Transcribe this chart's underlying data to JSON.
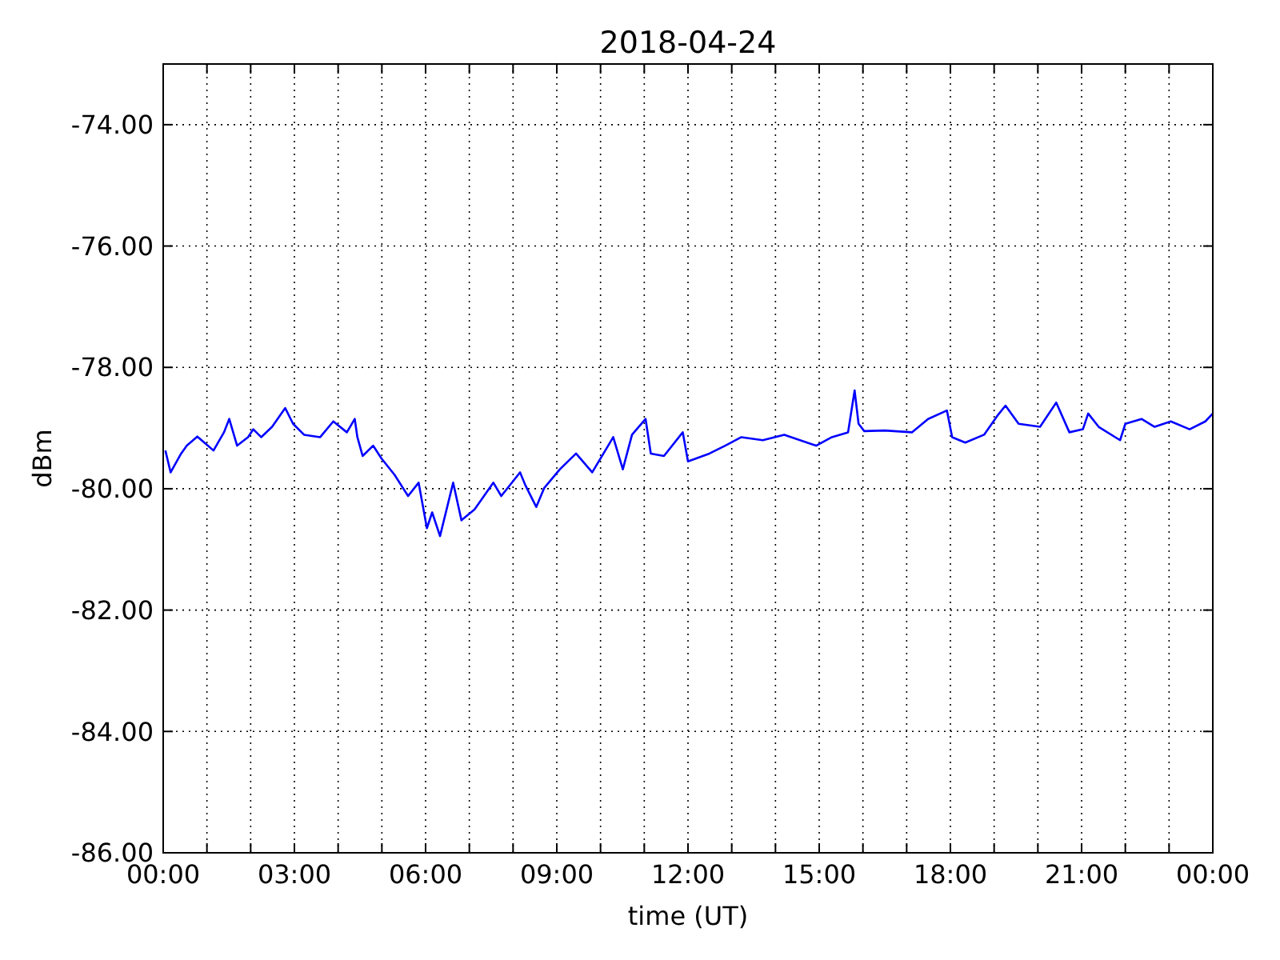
{
  "chart_data": {
    "type": "line",
    "title": "2018-04-24",
    "xlabel": "time (UT)",
    "ylabel": "dBm",
    "xlim": [
      0,
      24
    ],
    "ylim": [
      -86,
      -73
    ],
    "xticks": [
      {
        "value": 0,
        "label": "00:00"
      },
      {
        "value": 1,
        "label": null
      },
      {
        "value": 2,
        "label": null
      },
      {
        "value": 3,
        "label": "03:00"
      },
      {
        "value": 4,
        "label": null
      },
      {
        "value": 5,
        "label": null
      },
      {
        "value": 6,
        "label": "06:00"
      },
      {
        "value": 7,
        "label": null
      },
      {
        "value": 8,
        "label": null
      },
      {
        "value": 9,
        "label": "09:00"
      },
      {
        "value": 10,
        "label": null
      },
      {
        "value": 11,
        "label": null
      },
      {
        "value": 12,
        "label": "12:00"
      },
      {
        "value": 13,
        "label": null
      },
      {
        "value": 14,
        "label": null
      },
      {
        "value": 15,
        "label": "15:00"
      },
      {
        "value": 16,
        "label": null
      },
      {
        "value": 17,
        "label": null
      },
      {
        "value": 18,
        "label": "18:00"
      },
      {
        "value": 19,
        "label": null
      },
      {
        "value": 20,
        "label": null
      },
      {
        "value": 21,
        "label": "21:00"
      },
      {
        "value": 22,
        "label": null
      },
      {
        "value": 23,
        "label": null
      },
      {
        "value": 24,
        "label": "00:00"
      }
    ],
    "yticks": [
      {
        "value": -86,
        "label": "-86.00"
      },
      {
        "value": -84,
        "label": "-84.00"
      },
      {
        "value": -82,
        "label": "-82.00"
      },
      {
        "value": -80,
        "label": "-80.00"
      },
      {
        "value": -78,
        "label": "-78.00"
      },
      {
        "value": -76,
        "label": "-76.00"
      },
      {
        "value": -74,
        "label": "-74.00"
      }
    ],
    "grid": true,
    "line_style": "solid",
    "series": [
      {
        "color": "#0000ff",
        "x": [
          0.05,
          0.17,
          0.41,
          0.54,
          0.78,
          1.15,
          1.39,
          1.51,
          1.69,
          1.94,
          2.06,
          2.24,
          2.49,
          2.79,
          2.97,
          3.22,
          3.59,
          3.89,
          4.2,
          4.38,
          4.44,
          4.56,
          4.8,
          4.99,
          5.29,
          5.6,
          5.84,
          6.03,
          6.15,
          6.33,
          6.63,
          6.82,
          7.12,
          7.55,
          7.73,
          8.16,
          8.28,
          8.53,
          8.71,
          9.07,
          9.44,
          9.81,
          10.29,
          10.51,
          10.72,
          11.03,
          11.15,
          11.45,
          11.88,
          12,
          12.49,
          12.85,
          13.22,
          13.71,
          14.2,
          14.93,
          15.29,
          15.66,
          15.81,
          15.9,
          16.03,
          16.5,
          17.12,
          17.49,
          17.92,
          18.04,
          18.34,
          18.77,
          19.07,
          19.26,
          19.56,
          20.05,
          20.42,
          20.72,
          21.03,
          21.15,
          21.39,
          21.88,
          22,
          22.37,
          22.67,
          23.04,
          23.47,
          23.83,
          24
        ],
        "values": [
          -79.37,
          -79.73,
          -79.42,
          -79.29,
          -79.14,
          -79.37,
          -79.07,
          -78.85,
          -79.29,
          -79.15,
          -79.02,
          -79.15,
          -78.98,
          -78.67,
          -78.93,
          -79.11,
          -79.15,
          -78.89,
          -79.07,
          -78.85,
          -79.15,
          -79.46,
          -79.29,
          -79.5,
          -79.77,
          -80.12,
          -79.9,
          -80.65,
          -80.39,
          -80.78,
          -79.9,
          -80.52,
          -80.34,
          -79.9,
          -80.12,
          -79.73,
          -79.94,
          -80.3,
          -79.99,
          -79.68,
          -79.42,
          -79.73,
          -79.15,
          -79.68,
          -79.11,
          -78.85,
          -79.42,
          -79.46,
          -79.07,
          -79.55,
          -79.42,
          -79.29,
          -79.15,
          -79.2,
          -79.11,
          -79.29,
          -79.15,
          -79.07,
          -78.38,
          -78.93,
          -79.05,
          -79.04,
          -79.07,
          -78.85,
          -78.71,
          -79.15,
          -79.24,
          -79.11,
          -78.8,
          -78.63,
          -78.93,
          -78.98,
          -78.58,
          -79.07,
          -79.02,
          -78.76,
          -78.98,
          -79.2,
          -78.93,
          -78.85,
          -78.98,
          -78.89,
          -79.02,
          -78.89,
          -78.76
        ]
      }
    ]
  }
}
